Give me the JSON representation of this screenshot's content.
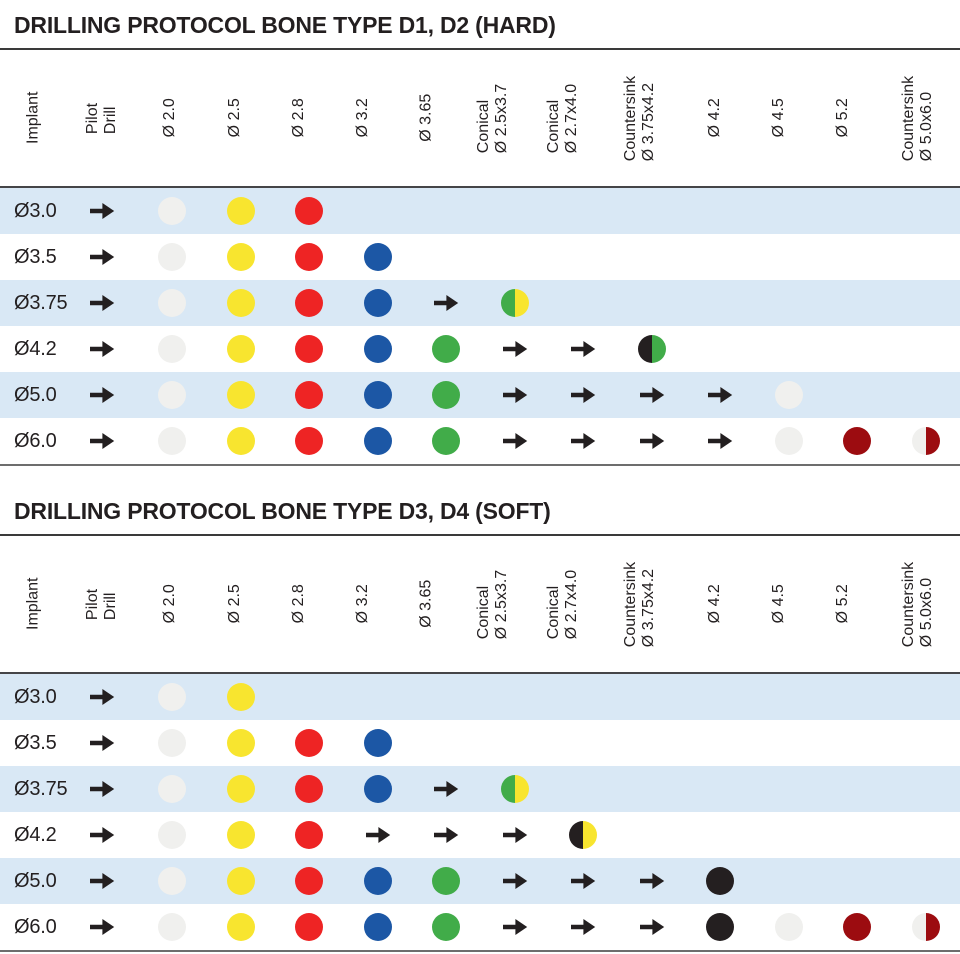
{
  "colors": {
    "text": "#231f20",
    "arrow": "#231f20",
    "row_alt_bg": "#d9e8f5",
    "lightgrey": "#f0f0ee",
    "yellow": "#f8e52f",
    "red": "#ee2424",
    "blue": "#1c57a5",
    "green": "#41ac49",
    "black": "#241f20",
    "darkred": "#9c0c10"
  },
  "columns": [
    {
      "id": "implant",
      "lines": [
        "Implant"
      ]
    },
    {
      "id": "pilot-drill",
      "lines": [
        "Pilot",
        "Drill"
      ]
    },
    {
      "id": "d2-0",
      "lines": [
        "Ø 2.0"
      ]
    },
    {
      "id": "d2-5",
      "lines": [
        "Ø 2.5"
      ]
    },
    {
      "id": "d2-8",
      "lines": [
        "Ø 2.8"
      ]
    },
    {
      "id": "d3-2",
      "lines": [
        "Ø 3.2"
      ]
    },
    {
      "id": "d3-65",
      "lines": [
        "Ø 3.65"
      ]
    },
    {
      "id": "conical-2-5x3-7",
      "lines": [
        "Conical",
        "Ø 2.5x3.7"
      ]
    },
    {
      "id": "conical-2-7x4-0",
      "lines": [
        "Conical",
        "Ø 2.7x4.0"
      ]
    },
    {
      "id": "countersink-3-75x4-2",
      "lines": [
        "Countersink",
        "Ø 3.75x4.2"
      ]
    },
    {
      "id": "d4-2",
      "lines": [
        "Ø 4.2"
      ]
    },
    {
      "id": "d4-5",
      "lines": [
        "Ø 4.5"
      ]
    },
    {
      "id": "d5-2",
      "lines": [
        "Ø 5.2"
      ]
    },
    {
      "id": "countersink-5-0x6-0",
      "lines": [
        "Countersink",
        "Ø 5.0x6.0"
      ]
    }
  ],
  "tables": [
    {
      "title": "DRILLING PROTOCOL BONE TYPE D1, D2 (HARD)",
      "rows": [
        {
          "implant": "Ø3.0",
          "cells": [
            "arrow",
            "dot:lightgrey",
            "dot:yellow",
            "dot:red",
            "",
            "",
            "",
            "",
            "",
            "",
            "",
            "",
            ""
          ]
        },
        {
          "implant": "Ø3.5",
          "cells": [
            "arrow",
            "dot:lightgrey",
            "dot:yellow",
            "dot:red",
            "dot:blue",
            "",
            "",
            "",
            "",
            "",
            "",
            "",
            ""
          ]
        },
        {
          "implant": "Ø3.75",
          "cells": [
            "arrow",
            "dot:lightgrey",
            "dot:yellow",
            "dot:red",
            "dot:blue",
            "arrow",
            "half:green,yellow",
            "",
            "",
            "",
            "",
            "",
            ""
          ]
        },
        {
          "implant": "Ø4.2",
          "cells": [
            "arrow",
            "dot:lightgrey",
            "dot:yellow",
            "dot:red",
            "dot:blue",
            "dot:green",
            "arrow",
            "arrow",
            "half:black,green",
            "",
            "",
            "",
            ""
          ]
        },
        {
          "implant": "Ø5.0",
          "cells": [
            "arrow",
            "dot:lightgrey",
            "dot:yellow",
            "dot:red",
            "dot:blue",
            "dot:green",
            "arrow",
            "arrow",
            "arrow",
            "arrow",
            "dot:lightgrey",
            "",
            ""
          ]
        },
        {
          "implant": "Ø6.0",
          "cells": [
            "arrow",
            "dot:lightgrey",
            "dot:yellow",
            "dot:red",
            "dot:blue",
            "dot:green",
            "arrow",
            "arrow",
            "arrow",
            "arrow",
            "dot:lightgrey",
            "dot:darkred",
            "half:lightgrey,darkred"
          ]
        }
      ]
    },
    {
      "title": "DRILLING PROTOCOL BONE TYPE D3, D4 (SOFT)",
      "rows": [
        {
          "implant": "Ø3.0",
          "cells": [
            "arrow",
            "dot:lightgrey",
            "dot:yellow",
            "",
            "",
            "",
            "",
            "",
            "",
            "",
            "",
            "",
            ""
          ]
        },
        {
          "implant": "Ø3.5",
          "cells": [
            "arrow",
            "dot:lightgrey",
            "dot:yellow",
            "dot:red",
            "dot:blue",
            "",
            "",
            "",
            "",
            "",
            "",
            "",
            ""
          ]
        },
        {
          "implant": "Ø3.75",
          "cells": [
            "arrow",
            "dot:lightgrey",
            "dot:yellow",
            "dot:red",
            "dot:blue",
            "arrow",
            "half:green,yellow",
            "",
            "",
            "",
            "",
            "",
            ""
          ]
        },
        {
          "implant": "Ø4.2",
          "cells": [
            "arrow",
            "dot:lightgrey",
            "dot:yellow",
            "dot:red",
            "arrow",
            "arrow",
            "arrow",
            "half:black,yellow",
            "",
            "",
            "",
            "",
            ""
          ]
        },
        {
          "implant": "Ø5.0",
          "cells": [
            "arrow",
            "dot:lightgrey",
            "dot:yellow",
            "dot:red",
            "dot:blue",
            "dot:green",
            "arrow",
            "arrow",
            "arrow",
            "dot:black",
            "",
            "",
            ""
          ]
        },
        {
          "implant": "Ø6.0",
          "cells": [
            "arrow",
            "dot:lightgrey",
            "dot:yellow",
            "dot:red",
            "dot:blue",
            "dot:green",
            "arrow",
            "arrow",
            "arrow",
            "dot:black",
            "dot:lightgrey",
            "dot:darkred",
            "half:lightgrey,darkred"
          ]
        }
      ]
    }
  ]
}
